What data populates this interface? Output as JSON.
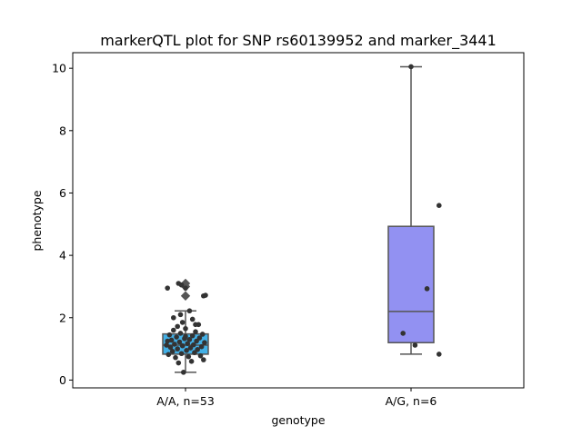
{
  "chart_data": {
    "type": "box",
    "title": "markerQTL plot for SNP rs60139952 and marker_3441",
    "xlabel": "genotype",
    "ylabel": "phenotype",
    "ylim": [
      -0.25,
      10.5
    ],
    "yticks": [
      0,
      2,
      4,
      6,
      8,
      10
    ],
    "grid": false,
    "categories": [
      "A/A, n=53",
      "A/G, n=6"
    ],
    "boxes": [
      {
        "category": "A/A, n=53",
        "color": "#43b0e6",
        "q1": 0.83,
        "median": 1.12,
        "q3": 1.48,
        "whisker_low": 0.25,
        "whisker_high": 2.22,
        "outliers": [
          2.7,
          3.0,
          3.1
        ]
      },
      {
        "category": "A/G, n=6",
        "color": "#9291f2",
        "q1": 1.2,
        "median": 2.2,
        "q3": 4.93,
        "whisker_low": 0.83,
        "whisker_high": 10.05,
        "outliers": []
      }
    ],
    "points": [
      [
        {
          "x": -0.02,
          "y": 0.25
        },
        {
          "x": -0.07,
          "y": 0.55
        },
        {
          "x": 0.06,
          "y": 0.6
        },
        {
          "x": 0.18,
          "y": 0.65
        },
        {
          "x": -0.1,
          "y": 0.72
        },
        {
          "x": 0.03,
          "y": 0.75
        },
        {
          "x": 0.15,
          "y": 0.78
        },
        {
          "x": -0.17,
          "y": 0.82
        },
        {
          "x": -0.04,
          "y": 0.85
        },
        {
          "x": 0.09,
          "y": 0.88
        },
        {
          "x": -0.13,
          "y": 0.92
        },
        {
          "x": 0.01,
          "y": 0.95
        },
        {
          "x": 0.12,
          "y": 0.98
        },
        {
          "x": -0.08,
          "y": 1.0
        },
        {
          "x": 0.05,
          "y": 1.03
        },
        {
          "x": -0.15,
          "y": 1.05
        },
        {
          "x": 0.16,
          "y": 1.07
        },
        {
          "x": -0.03,
          "y": 1.1
        },
        {
          "x": -0.19,
          "y": 1.12
        },
        {
          "x": 0.08,
          "y": 1.13
        },
        {
          "x": -0.11,
          "y": 1.15
        },
        {
          "x": 0.02,
          "y": 1.17
        },
        {
          "x": 0.19,
          "y": 1.2
        },
        {
          "x": -0.06,
          "y": 1.22
        },
        {
          "x": 0.11,
          "y": 1.25
        },
        {
          "x": -0.14,
          "y": 1.28
        },
        {
          "x": 0.04,
          "y": 1.3
        },
        {
          "x": -0.01,
          "y": 1.33
        },
        {
          "x": 0.14,
          "y": 1.35
        },
        {
          "x": -0.09,
          "y": 1.38
        },
        {
          "x": 0.07,
          "y": 1.42
        },
        {
          "x": -0.16,
          "y": 1.45
        },
        {
          "x": 0.17,
          "y": 1.47
        },
        {
          "x": -0.05,
          "y": 1.5
        },
        {
          "x": 0.1,
          "y": 1.55
        },
        {
          "x": -0.12,
          "y": 1.6
        },
        {
          "x": 0.0,
          "y": 1.65
        },
        {
          "x": -0.08,
          "y": 1.72
        },
        {
          "x": 0.1,
          "y": 1.78
        },
        {
          "x": 0.13,
          "y": 1.78
        },
        {
          "x": -0.03,
          "y": 1.85
        },
        {
          "x": 0.07,
          "y": 1.95
        },
        {
          "x": -0.12,
          "y": 2.0
        },
        {
          "x": -0.05,
          "y": 2.1
        },
        {
          "x": 0.04,
          "y": 2.22
        },
        {
          "x": 0.18,
          "y": 2.7
        },
        {
          "x": 0.2,
          "y": 2.72
        },
        {
          "x": -0.18,
          "y": 2.95
        },
        {
          "x": 0.0,
          "y": 2.95
        },
        {
          "x": -0.04,
          "y": 3.05
        },
        {
          "x": -0.07,
          "y": 3.1
        },
        {
          "x": 0.0,
          "y": 1.4
        },
        {
          "x": -0.18,
          "y": 1.25
        }
      ],
      [
        {
          "x": 0.0,
          "y": 10.05
        },
        {
          "x": 0.28,
          "y": 5.6
        },
        {
          "x": 0.16,
          "y": 2.93
        },
        {
          "x": -0.08,
          "y": 1.5
        },
        {
          "x": 0.04,
          "y": 1.12
        },
        {
          "x": 0.28,
          "y": 0.83
        }
      ]
    ]
  }
}
